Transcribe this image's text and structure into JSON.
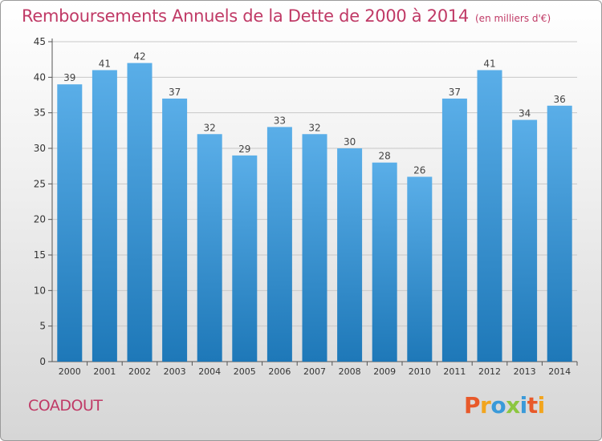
{
  "header": {
    "title": "Remboursements Annuels de la Dette de 2000 à 2014",
    "unit": "(en milliers d'€)"
  },
  "footer": {
    "commune": "COADOUT",
    "logo_text": "Proxiti"
  },
  "colors": {
    "title": "#c03a66",
    "bar_top": "#5aaee8",
    "bar_bottom": "#1e78b8",
    "grid": "#c8c8c8",
    "logo_letters": [
      "#e8592a",
      "#f2a51e",
      "#3a9ad9",
      "#8cc63f",
      "#3a9ad9",
      "#e8592a",
      "#f2a51e"
    ]
  },
  "chart_data": {
    "type": "bar",
    "title": "Remboursements Annuels de la Dette de 2000 à 2014",
    "subtitle": "(en milliers d'€)",
    "categories": [
      "2000",
      "2001",
      "2002",
      "2003",
      "2004",
      "2005",
      "2006",
      "2007",
      "2008",
      "2009",
      "2010",
      "2011",
      "2012",
      "2013",
      "2014"
    ],
    "values": [
      39,
      41,
      42,
      37,
      32,
      29,
      33,
      32,
      30,
      28,
      26,
      37,
      41,
      34,
      36
    ],
    "ylim": [
      0,
      45
    ],
    "yticks": [
      0,
      5,
      10,
      15,
      20,
      25,
      30,
      35,
      40,
      45
    ],
    "grid": true,
    "xlabel": "",
    "ylabel": ""
  }
}
